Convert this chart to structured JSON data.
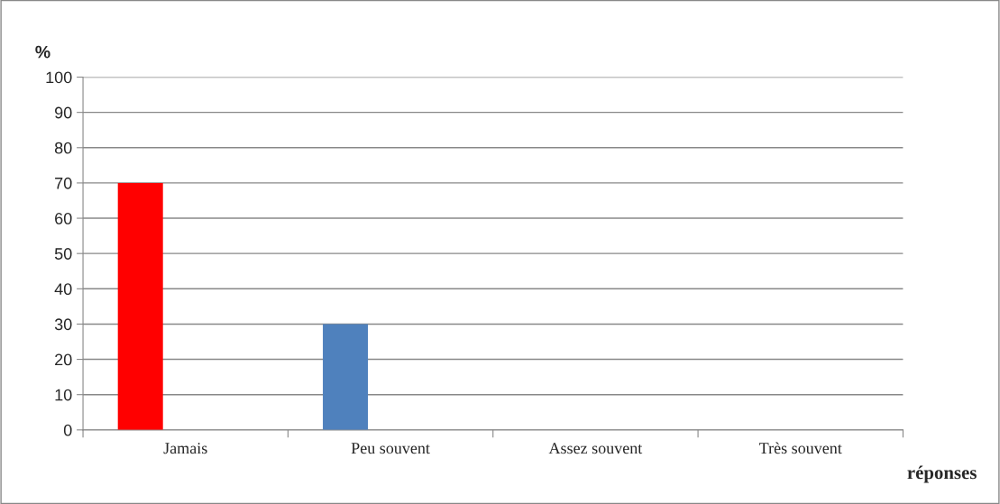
{
  "chart_data": {
    "type": "bar",
    "categories": [
      "Jamais",
      "Peu souvent",
      "Assez souvent",
      "Très souvent"
    ],
    "values": [
      70,
      30,
      0,
      0
    ],
    "colors": [
      "#ff0000",
      "#4f81bd",
      "#4f81bd",
      "#4f81bd"
    ],
    "ylabel": "%",
    "xlabel": "réponses",
    "ylim": [
      0,
      100
    ],
    "yticks": [
      0,
      10,
      20,
      30,
      40,
      50,
      60,
      70,
      80,
      90,
      100
    ],
    "grid": "y",
    "legend": false
  }
}
